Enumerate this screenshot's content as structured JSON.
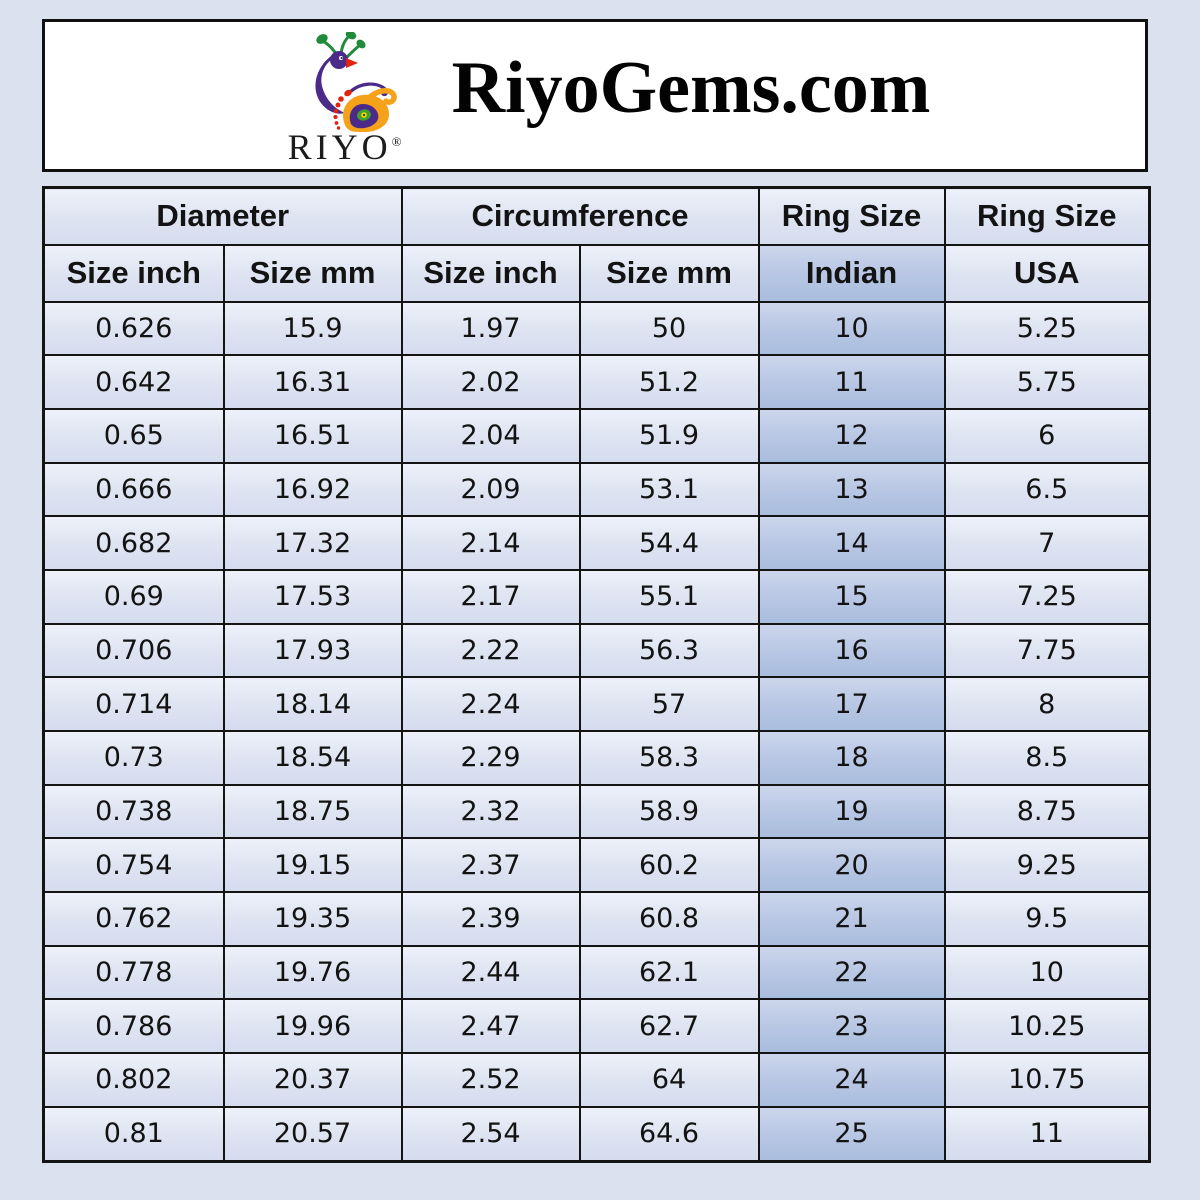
{
  "header": {
    "title": "RiyoGems.com",
    "logo_text": "RIYO",
    "registered_mark": "®"
  },
  "table": {
    "group_headers": [
      "Diameter",
      "Circumference",
      "Ring Size",
      "Ring Size"
    ],
    "columns": [
      "Size inch",
      "Size mm",
      "Size inch",
      "Size mm",
      "Indian",
      "USA"
    ],
    "rows": [
      [
        "0.626",
        "15.9",
        "1.97",
        "50",
        "10",
        "5.25"
      ],
      [
        "0.642",
        "16.31",
        "2.02",
        "51.2",
        "11",
        "5.75"
      ],
      [
        "0.65",
        "16.51",
        "2.04",
        "51.9",
        "12",
        "6"
      ],
      [
        "0.666",
        "16.92",
        "2.09",
        "53.1",
        "13",
        "6.5"
      ],
      [
        "0.682",
        "17.32",
        "2.14",
        "54.4",
        "14",
        "7"
      ],
      [
        "0.69",
        "17.53",
        "2.17",
        "55.1",
        "15",
        "7.25"
      ],
      [
        "0.706",
        "17.93",
        "2.22",
        "56.3",
        "16",
        "7.75"
      ],
      [
        "0.714",
        "18.14",
        "2.24",
        "57",
        "17",
        "8"
      ],
      [
        "0.73",
        "18.54",
        "2.29",
        "58.3",
        "18",
        "8.5"
      ],
      [
        "0.738",
        "18.75",
        "2.32",
        "58.9",
        "19",
        "8.75"
      ],
      [
        "0.754",
        "19.15",
        "2.37",
        "60.2",
        "20",
        "9.25"
      ],
      [
        "0.762",
        "19.35",
        "2.39",
        "60.8",
        "21",
        "9.5"
      ],
      [
        "0.778",
        "19.76",
        "2.44",
        "62.1",
        "22",
        "10"
      ],
      [
        "0.786",
        "19.96",
        "2.47",
        "62.7",
        "23",
        "10.25"
      ],
      [
        "0.802",
        "20.37",
        "2.52",
        "64",
        "24",
        "10.75"
      ],
      [
        "0.81",
        "20.57",
        "2.54",
        "64.6",
        "25",
        "11"
      ]
    ]
  },
  "colors": {
    "page_background": "#dce1f0",
    "cell_light_top": "#eef1f9",
    "cell_light_bottom": "#d5dcee",
    "indian_column_top": "#ccd6ec",
    "indian_column_bottom": "#a9bdde",
    "grid_line": "#141414",
    "header_box_background": "#ffffff",
    "logo_purple": "#4b2a8a",
    "logo_orange": "#f6a11a",
    "logo_green": "#1f8b3b",
    "logo_red": "#e02410",
    "logo_yellow": "#ffd400"
  }
}
